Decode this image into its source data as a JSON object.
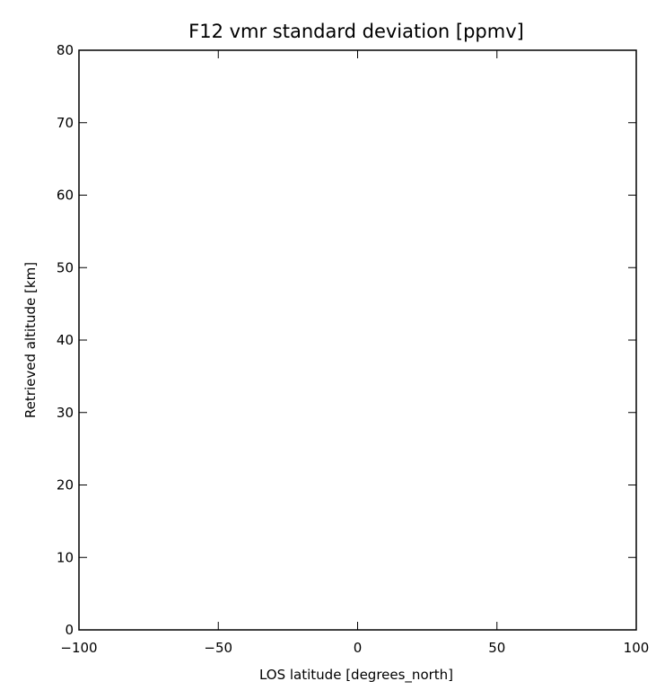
{
  "chart_data": {
    "type": "line",
    "title": "F12 vmr standard deviation [ppmv]",
    "xlabel": "LOS latitude [degrees_north]",
    "ylabel": "Retrieved altitude [km]",
    "xlim": [
      -100,
      100
    ],
    "ylim": [
      0,
      80
    ],
    "xticks": [
      -100,
      -50,
      0,
      50,
      100
    ],
    "yticks": [
      0,
      10,
      20,
      30,
      40,
      50,
      60,
      70,
      80
    ],
    "xtick_labels": [
      "−100",
      "−50",
      "0",
      "50",
      "100"
    ],
    "ytick_labels": [
      "0",
      "10",
      "20",
      "30",
      "40",
      "50",
      "60",
      "70",
      "80"
    ],
    "series": [],
    "grid": false
  }
}
